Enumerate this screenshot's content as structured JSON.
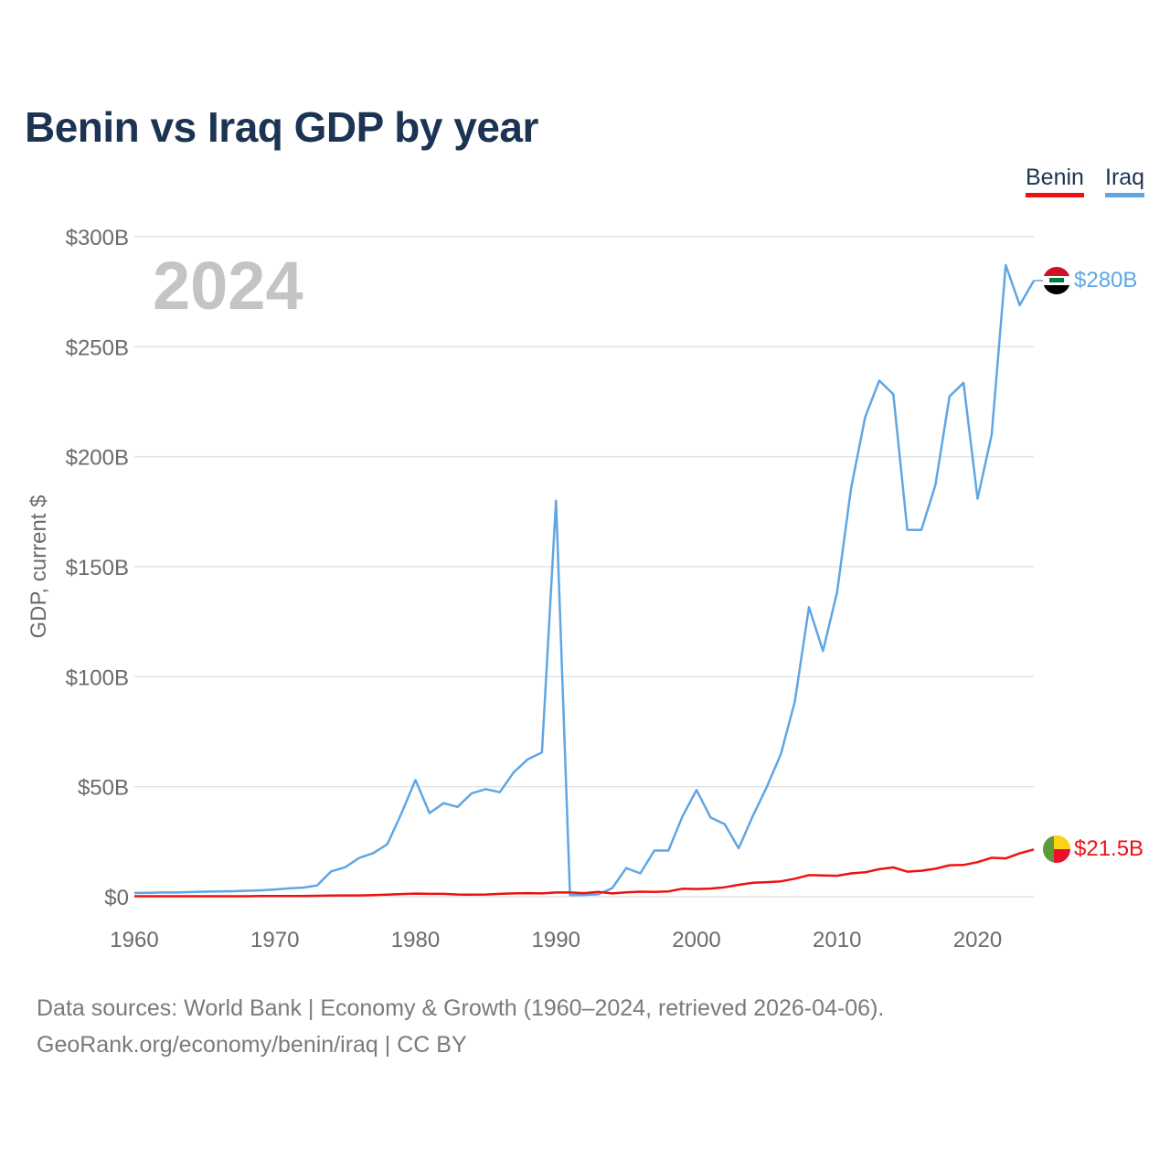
{
  "title": "Benin vs Iraq GDP by year",
  "legend": [
    {
      "name": "Benin",
      "color": "#ee1111"
    },
    {
      "name": "Iraq",
      "color": "#5fa6e4"
    }
  ],
  "year_watermark": "2024",
  "source_line1": "Data sources: World Bank | Economy & Growth (1960–2024, retrieved 2026-04-06).",
  "source_line2": "GeoRank.org/economy/benin/iraq | CC BY",
  "end_labels": {
    "benin": "$21.5B",
    "iraq": "$280B"
  },
  "flags": {
    "benin": "benin-flag-icon",
    "iraq": "iraq-flag-icon"
  },
  "chart_data": {
    "type": "line",
    "title": "Benin vs Iraq GDP by year",
    "xlabel": "",
    "ylabel": "GDP, current $",
    "xlim": [
      1960,
      2024
    ],
    "ylim": [
      0,
      300
    ],
    "yunit": "billions USD",
    "grid": true,
    "legend_position": "top-right",
    "xticks": [
      1960,
      1970,
      1980,
      1990,
      2000,
      2010,
      2020
    ],
    "xtick_labels": [
      "1960",
      "1970",
      "1980",
      "1990",
      "2000",
      "2010",
      "2020"
    ],
    "yticks": [
      0,
      50,
      100,
      150,
      200,
      250,
      300
    ],
    "ytick_labels": [
      "$0",
      "$50B",
      "$100B",
      "$150B",
      "$200B",
      "$250B",
      "$300B"
    ],
    "x": [
      1960,
      1961,
      1962,
      1963,
      1964,
      1965,
      1966,
      1967,
      1968,
      1969,
      1970,
      1971,
      1972,
      1973,
      1974,
      1975,
      1976,
      1977,
      1978,
      1979,
      1980,
      1981,
      1982,
      1983,
      1984,
      1985,
      1986,
      1987,
      1988,
      1989,
      1990,
      1991,
      1992,
      1993,
      1994,
      1995,
      1996,
      1997,
      1998,
      1999,
      2000,
      2001,
      2002,
      2003,
      2004,
      2005,
      2006,
      2007,
      2008,
      2009,
      2010,
      2011,
      2012,
      2013,
      2014,
      2015,
      2016,
      2017,
      2018,
      2019,
      2020,
      2021,
      2022,
      2023,
      2024
    ],
    "series": [
      {
        "name": "Iraq",
        "color": "#5fa6e4",
        "values": [
          1.7,
          1.8,
          1.9,
          1.9,
          2.1,
          2.3,
          2.4,
          2.5,
          2.7,
          2.9,
          3.3,
          3.8,
          4.1,
          5.1,
          11.5,
          13.4,
          17.6,
          19.8,
          23.9,
          37.8,
          53.0,
          38.0,
          42.5,
          40.8,
          47.0,
          48.9,
          47.5,
          56.6,
          62.5,
          65.6,
          180.0,
          0.7,
          0.8,
          1.1,
          3.9,
          13.0,
          10.6,
          21.0,
          21.0,
          36.5,
          48.5,
          36.0,
          33.0,
          22.0,
          36.6,
          49.9,
          64.8,
          88.8,
          131.6,
          111.7,
          138.5,
          185.7,
          218.0,
          234.6,
          228.4,
          166.8,
          166.7,
          187.2,
          227.4,
          233.6,
          180.9,
          210.0,
          287.1,
          268.9,
          280.0
        ]
      },
      {
        "name": "Benin",
        "color": "#ee1111",
        "values": [
          0.2,
          0.2,
          0.2,
          0.2,
          0.2,
          0.2,
          0.2,
          0.2,
          0.2,
          0.3,
          0.3,
          0.3,
          0.3,
          0.4,
          0.5,
          0.6,
          0.6,
          0.7,
          0.9,
          1.2,
          1.4,
          1.3,
          1.3,
          1.0,
          0.9,
          1.0,
          1.3,
          1.5,
          1.6,
          1.5,
          1.9,
          1.9,
          1.6,
          2.2,
          1.5,
          2.0,
          2.3,
          2.2,
          2.4,
          3.6,
          3.5,
          3.7,
          4.3,
          5.4,
          6.3,
          6.6,
          7.0,
          8.2,
          9.8,
          9.7,
          9.5,
          10.6,
          11.1,
          12.5,
          13.3,
          11.4,
          11.8,
          12.7,
          14.3,
          14.4,
          15.7,
          17.7,
          17.4,
          19.7,
          21.5
        ]
      }
    ]
  }
}
